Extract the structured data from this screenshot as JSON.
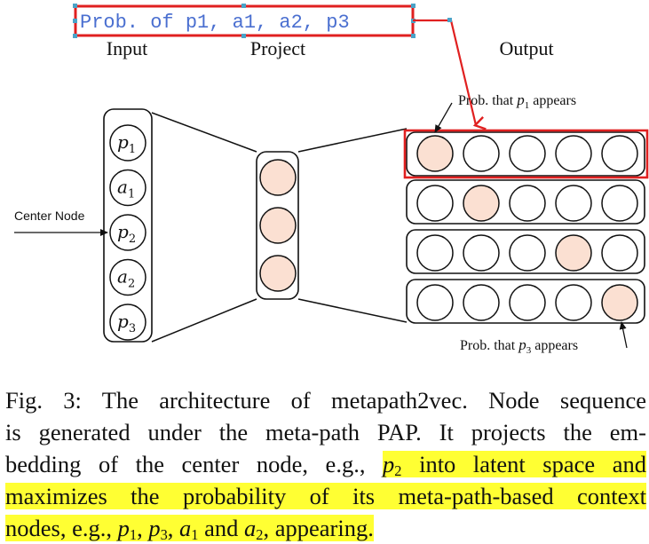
{
  "annotation": {
    "text": "Prob. of p1, a1, a2, p3",
    "colors": {
      "box": "#e02020",
      "text": "#4a6fd0",
      "handles": "#4aa3c8"
    }
  },
  "labels": {
    "input": "Input",
    "project": "Project",
    "output": "Output",
    "center_node": "Center Node"
  },
  "input_nodes": [
    {
      "base": "p",
      "sub": "1"
    },
    {
      "base": "a",
      "sub": "1"
    },
    {
      "base": "p",
      "sub": "2"
    },
    {
      "base": "a",
      "sub": "2"
    },
    {
      "base": "p",
      "sub": "3"
    }
  ],
  "projection_nodes": 3,
  "output_rows": [
    {
      "nodes": 5,
      "highlighted": 0,
      "selected": true
    },
    {
      "nodes": 5,
      "highlighted": 1,
      "selected": false
    },
    {
      "nodes": 5,
      "highlighted": 3,
      "selected": false
    },
    {
      "nodes": 5,
      "highlighted": 4,
      "selected": false
    }
  ],
  "callouts": {
    "top": {
      "prefix": "Prob. that ",
      "var": "p",
      "sub": "1",
      "suffix": " appears"
    },
    "bottom": {
      "prefix": "Prob. that ",
      "var": "p",
      "sub": "3",
      "suffix": " appears"
    }
  },
  "colors": {
    "node_fill": "#fbe0d2",
    "stroke": "#111111",
    "highlight": "#ffff33"
  },
  "caption": {
    "line1": "Fig. 3: The architecture of metapath2vec. Node sequence",
    "line2": "is generated under the meta-path PAP. It projects the em-",
    "line3_plain": "bedding of the center node, e.g., ",
    "line3_hl_var": "p",
    "line3_hl_sub": "2",
    "line3_hl_rest": " into latent space and",
    "line4": "maximizes the probability of its meta-path-based context",
    "line5_a": "nodes, e.g., ",
    "line5_p1": "p",
    "line5_p1_sub": "1",
    "line5_sep1": ", ",
    "line5_p3": "p",
    "line5_p3_sub": "3",
    "line5_sep2": ", ",
    "line5_a1": "a",
    "line5_a1_sub": "1",
    "line5_and": " and ",
    "line5_a2": "a",
    "line5_a2_sub": "2",
    "line5_end": ", appearing."
  }
}
